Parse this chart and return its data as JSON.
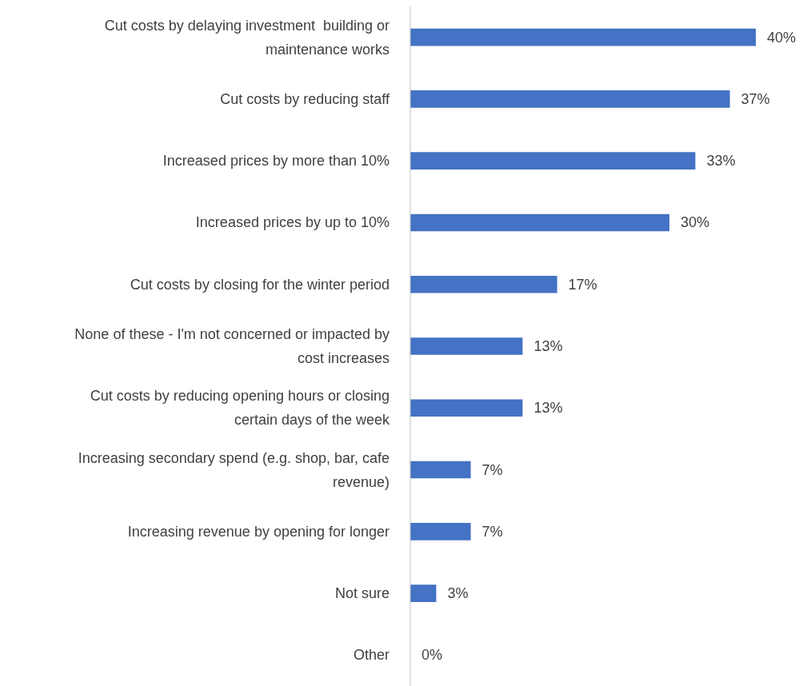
{
  "chart_data": {
    "type": "bar",
    "orientation": "horizontal",
    "categories": [
      "Cut costs by delaying investment  building or maintenance works",
      "Cut costs by reducing staff",
      "Increased prices by more than 10%",
      "Increased prices by up to 10%",
      "Cut costs by closing for the winter period",
      "None of these - I'm not concerned or impacted by cost increases",
      "Cut costs by reducing opening hours or closing certain days of the week",
      "Increasing secondary spend (e.g. shop, bar, cafe revenue)",
      "Increasing revenue by opening for longer",
      "Not sure",
      "Other"
    ],
    "values": [
      40,
      37,
      33,
      30,
      17,
      13,
      13,
      7,
      7,
      3,
      0
    ],
    "value_labels": [
      "40%",
      "37%",
      "33%",
      "30%",
      "17%",
      "13%",
      "13%",
      "7%",
      "7%",
      "3%",
      "0%"
    ],
    "color": "#4472c4",
    "grid": false,
    "legend": false
  }
}
